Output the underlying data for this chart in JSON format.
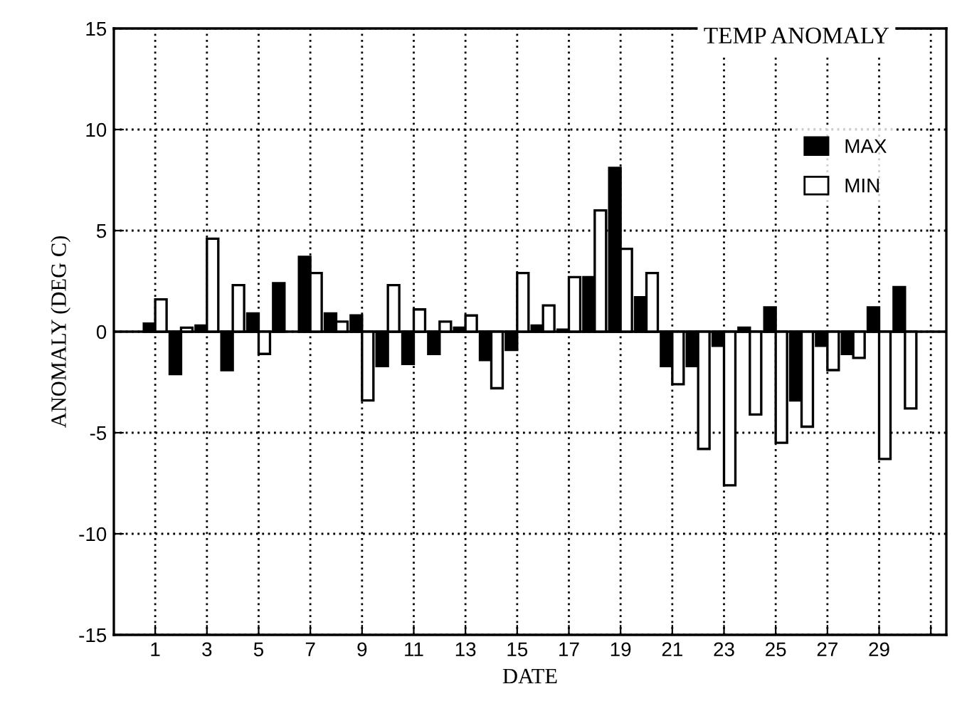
{
  "chart_data": {
    "type": "bar",
    "title": "TEMP ANOMALY",
    "xlabel": "DATE",
    "ylabel": "ANOMALY (DEG C)",
    "x": [
      1,
      2,
      3,
      4,
      5,
      6,
      7,
      8,
      9,
      10,
      11,
      12,
      13,
      14,
      15,
      16,
      17,
      18,
      19,
      20,
      21,
      22,
      23,
      24,
      25,
      26,
      27,
      28,
      29,
      30
    ],
    "series": [
      {
        "name": "MAX",
        "color": "#000000",
        "values": [
          0.4,
          -2.1,
          0.3,
          -1.9,
          0.9,
          2.4,
          3.7,
          0.9,
          0.8,
          -1.7,
          -1.6,
          -1.1,
          0.2,
          -1.4,
          -0.9,
          0.3,
          0.1,
          2.7,
          8.1,
          1.7,
          -1.7,
          -1.7,
          -0.7,
          0.2,
          1.2,
          -3.4,
          -0.7,
          -1.1,
          1.2,
          2.2
        ]
      },
      {
        "name": "MIN",
        "color": "#ffffff",
        "values": [
          1.6,
          0.2,
          4.6,
          2.3,
          -1.1,
          null,
          2.9,
          0.5,
          -3.4,
          2.3,
          1.1,
          0.5,
          0.8,
          -2.8,
          2.9,
          1.3,
          2.7,
          6.0,
          4.1,
          2.9,
          -2.6,
          -5.8,
          -7.6,
          -4.1,
          -5.5,
          -4.7,
          -1.9,
          -1.3,
          -6.3,
          -3.8
        ]
      }
    ],
    "xlim": [
      -0.6,
      31.6
    ],
    "xticks": [
      1,
      3,
      5,
      7,
      9,
      11,
      13,
      15,
      17,
      19,
      21,
      23,
      25,
      27,
      29,
      {
        "value": 31,
        "label": null
      }
    ],
    "ylim": [
      -15,
      15
    ],
    "yticks": [
      -15,
      -10,
      -5,
      0,
      5,
      10,
      15
    ],
    "grid": true,
    "legend": "top right"
  }
}
